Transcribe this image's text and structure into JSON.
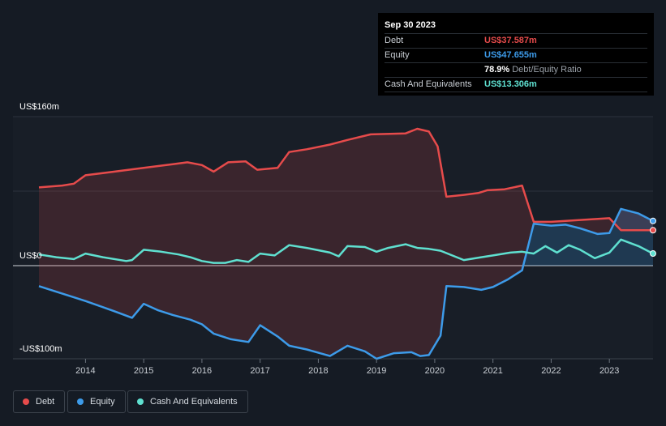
{
  "tooltip": {
    "date": "Sep 30 2023",
    "rows": [
      {
        "label": "Debt",
        "value": "US$37.587m",
        "color": "#e64b4b"
      },
      {
        "label": "Equity",
        "value": "US$47.655m",
        "color": "#3d9be9"
      },
      {
        "label": "",
        "value": "78.9%",
        "sub": "Debt/Equity Ratio",
        "color": "#ffffff"
      },
      {
        "label": "Cash And Equivalents",
        "value": "US$13.306m",
        "color": "#5fe0d0"
      }
    ]
  },
  "legend": [
    {
      "label": "Debt",
      "color": "#e64b4b"
    },
    {
      "label": "Equity",
      "color": "#3d9be9"
    },
    {
      "label": "Cash And Equivalents",
      "color": "#5fe0d0"
    }
  ],
  "chart_data": {
    "type": "line",
    "y_tick_labels": [
      "US$160m",
      "US$0",
      "-US$100m"
    ],
    "ylim": [
      -100,
      160
    ],
    "x_ticks": [
      "2014",
      "2015",
      "2016",
      "2017",
      "2018",
      "2019",
      "2020",
      "2021",
      "2022",
      "2023"
    ],
    "xlim": [
      2013.2,
      2023.75
    ],
    "grid": true,
    "legend_position": "bottom-left",
    "series": [
      {
        "name": "Debt",
        "color": "#e64b4b",
        "points": [
          [
            2013.2,
            84
          ],
          [
            2013.6,
            86
          ],
          [
            2013.8,
            88
          ],
          [
            2014.0,
            97
          ],
          [
            2014.5,
            101
          ],
          [
            2015.0,
            105
          ],
          [
            2015.5,
            109
          ],
          [
            2015.75,
            111
          ],
          [
            2016.0,
            108
          ],
          [
            2016.2,
            101
          ],
          [
            2016.45,
            111
          ],
          [
            2016.75,
            112
          ],
          [
            2016.95,
            103
          ],
          [
            2017.3,
            105
          ],
          [
            2017.5,
            122
          ],
          [
            2017.8,
            125
          ],
          [
            2018.2,
            130
          ],
          [
            2018.5,
            135
          ],
          [
            2018.9,
            141
          ],
          [
            2019.5,
            142
          ],
          [
            2019.7,
            147
          ],
          [
            2019.9,
            144
          ],
          [
            2020.05,
            128
          ],
          [
            2020.2,
            74
          ],
          [
            2020.5,
            76
          ],
          [
            2020.75,
            78
          ],
          [
            2020.9,
            81
          ],
          [
            2021.2,
            82
          ],
          [
            2021.5,
            86
          ],
          [
            2021.7,
            47
          ],
          [
            2022.0,
            47
          ],
          [
            2022.5,
            49
          ],
          [
            2022.75,
            50
          ],
          [
            2023.0,
            51
          ],
          [
            2023.2,
            38
          ],
          [
            2023.75,
            38
          ]
        ]
      },
      {
        "name": "Equity",
        "color": "#3d9be9",
        "points": [
          [
            2013.2,
            -22
          ],
          [
            2013.45,
            -27
          ],
          [
            2013.75,
            -33
          ],
          [
            2014.0,
            -38
          ],
          [
            2014.5,
            -49
          ],
          [
            2014.8,
            -56
          ],
          [
            2015.0,
            -41
          ],
          [
            2015.25,
            -48
          ],
          [
            2015.5,
            -53
          ],
          [
            2015.8,
            -58
          ],
          [
            2016.0,
            -63
          ],
          [
            2016.2,
            -73
          ],
          [
            2016.5,
            -79
          ],
          [
            2016.8,
            -82
          ],
          [
            2017.0,
            -64
          ],
          [
            2017.3,
            -76
          ],
          [
            2017.5,
            -86
          ],
          [
            2017.8,
            -90
          ],
          [
            2018.2,
            -97
          ],
          [
            2018.5,
            -86
          ],
          [
            2018.8,
            -92
          ],
          [
            2019.0,
            -100
          ],
          [
            2019.3,
            -94
          ],
          [
            2019.6,
            -93
          ],
          [
            2019.75,
            -97
          ],
          [
            2019.9,
            -96
          ],
          [
            2020.1,
            -75
          ],
          [
            2020.2,
            -22
          ],
          [
            2020.5,
            -23
          ],
          [
            2020.8,
            -26
          ],
          [
            2021.0,
            -23
          ],
          [
            2021.25,
            -15
          ],
          [
            2021.5,
            -5
          ],
          [
            2021.7,
            45
          ],
          [
            2022.0,
            43
          ],
          [
            2022.25,
            44
          ],
          [
            2022.5,
            40
          ],
          [
            2022.8,
            34
          ],
          [
            2023.0,
            35
          ],
          [
            2023.2,
            61
          ],
          [
            2023.5,
            56
          ],
          [
            2023.75,
            48
          ]
        ]
      },
      {
        "name": "Cash And Equivalents",
        "color": "#5fe0d0",
        "points": [
          [
            2013.2,
            12
          ],
          [
            2013.5,
            9
          ],
          [
            2013.8,
            7
          ],
          [
            2014.0,
            13
          ],
          [
            2014.3,
            9
          ],
          [
            2014.7,
            5
          ],
          [
            2014.8,
            6
          ],
          [
            2015.0,
            17
          ],
          [
            2015.3,
            15
          ],
          [
            2015.6,
            12
          ],
          [
            2015.8,
            9
          ],
          [
            2016.0,
            5
          ],
          [
            2016.2,
            3
          ],
          [
            2016.4,
            3
          ],
          [
            2016.6,
            6
          ],
          [
            2016.8,
            4
          ],
          [
            2017.0,
            13
          ],
          [
            2017.25,
            11
          ],
          [
            2017.5,
            22
          ],
          [
            2017.8,
            19
          ],
          [
            2018.2,
            14
          ],
          [
            2018.35,
            10
          ],
          [
            2018.5,
            21
          ],
          [
            2018.8,
            20
          ],
          [
            2019.0,
            15
          ],
          [
            2019.2,
            19
          ],
          [
            2019.5,
            23
          ],
          [
            2019.7,
            19
          ],
          [
            2019.9,
            18
          ],
          [
            2020.1,
            16
          ],
          [
            2020.5,
            6
          ],
          [
            2020.8,
            9
          ],
          [
            2021.0,
            11
          ],
          [
            2021.3,
            14
          ],
          [
            2021.5,
            15
          ],
          [
            2021.7,
            13
          ],
          [
            2021.9,
            21
          ],
          [
            2022.1,
            14
          ],
          [
            2022.3,
            22
          ],
          [
            2022.5,
            17
          ],
          [
            2022.75,
            8
          ],
          [
            2023.0,
            14
          ],
          [
            2023.2,
            28
          ],
          [
            2023.5,
            21
          ],
          [
            2023.75,
            13
          ]
        ]
      }
    ]
  }
}
